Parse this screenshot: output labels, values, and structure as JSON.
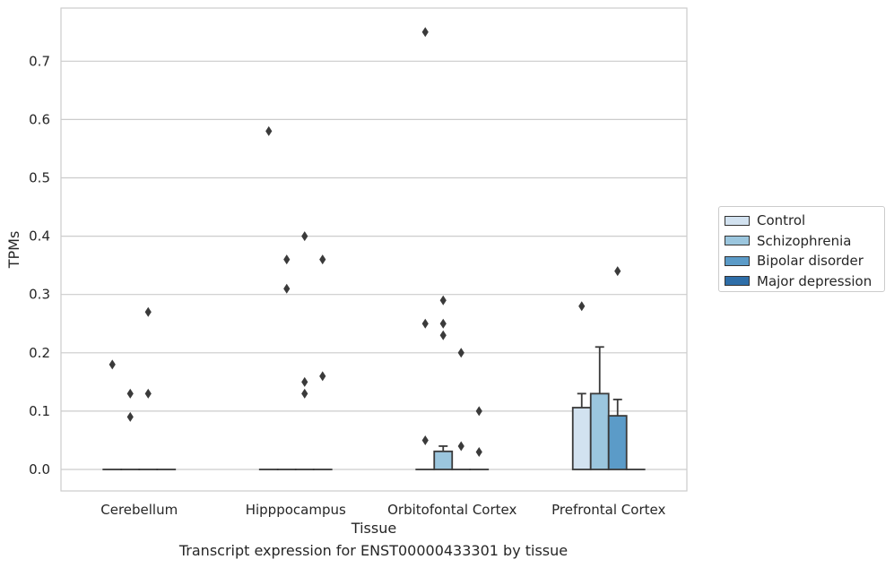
{
  "chart_data": {
    "type": "bar",
    "xlabel": "Tissue",
    "ylabel": "TPMs",
    "caption": "Transcript expression for ENST00000433301 by tissue",
    "ylim": [
      -0.037,
      0.79
    ],
    "yticks": [
      "0.0",
      "0.1",
      "0.2",
      "0.3",
      "0.4",
      "0.5",
      "0.6",
      "0.7"
    ],
    "grid": "horizontal",
    "legend_position": "right",
    "categories": [
      "Cerebellum",
      "Hipppocampus",
      "Orbitofontal Cortex",
      "Prefrontal Cortex"
    ],
    "series": [
      {
        "name": "Control",
        "color": "#d2e2f0",
        "values": [
          0.0,
          0.0,
          0.0,
          0.106
        ],
        "err": [
          0.0,
          0.0,
          0.0,
          0.13
        ]
      },
      {
        "name": "Schizophrenia",
        "color": "#9bc6de",
        "values": [
          0.0,
          0.0,
          0.031,
          0.13
        ],
        "err": [
          0.0,
          0.0,
          0.04,
          0.21
        ]
      },
      {
        "name": "Bipolar disorder",
        "color": "#5b9bc8",
        "values": [
          0.0,
          0.0,
          0.0,
          0.092
        ],
        "err": [
          0.0,
          0.0,
          0.0,
          0.12
        ]
      },
      {
        "name": "Major depression",
        "color": "#2e6ea8",
        "values": [
          0.0,
          0.0,
          0.0,
          0.0
        ],
        "err": [
          0.0,
          0.0,
          0.0,
          0.0
        ]
      }
    ],
    "outliers": [
      {
        "category": 0,
        "series": 0,
        "y": [
          0.18
        ]
      },
      {
        "category": 0,
        "series": 1,
        "y": [
          0.13,
          0.09
        ]
      },
      {
        "category": 0,
        "series": 2,
        "y": [
          0.27,
          0.13
        ]
      },
      {
        "category": 1,
        "series": 0,
        "y": [
          0.58
        ]
      },
      {
        "category": 1,
        "series": 1,
        "y": [
          0.36,
          0.31
        ]
      },
      {
        "category": 1,
        "series": 2,
        "y": [
          0.4,
          0.15,
          0.13
        ]
      },
      {
        "category": 1,
        "series": 3,
        "y": [
          0.36,
          0.16
        ]
      },
      {
        "category": 2,
        "series": 0,
        "y": [
          0.75,
          0.25,
          0.05
        ]
      },
      {
        "category": 2,
        "series": 1,
        "y": [
          0.29,
          0.25,
          0.23
        ]
      },
      {
        "category": 2,
        "series": 2,
        "y": [
          0.2,
          0.04
        ]
      },
      {
        "category": 2,
        "series": 3,
        "y": [
          0.1,
          0.03
        ]
      },
      {
        "category": 3,
        "series": 0,
        "y": [
          0.28
        ]
      },
      {
        "category": 3,
        "series": 2,
        "y": [
          0.34
        ]
      }
    ]
  }
}
